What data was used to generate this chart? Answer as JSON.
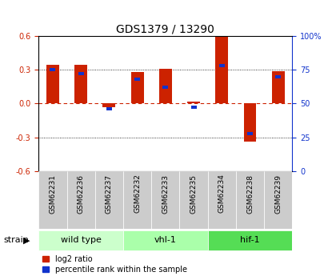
{
  "title": "GDS1379 / 13290",
  "samples": [
    "GSM62231",
    "GSM62236",
    "GSM62237",
    "GSM62232",
    "GSM62233",
    "GSM62235",
    "GSM62234",
    "GSM62238",
    "GSM62239"
  ],
  "log2_ratio": [
    0.34,
    0.34,
    -0.03,
    0.28,
    0.31,
    0.02,
    0.59,
    -0.34,
    0.29
  ],
  "percentile_rank_pct": [
    75,
    72,
    46,
    68,
    62,
    47,
    78,
    28,
    70
  ],
  "groups": [
    {
      "label": "wild type",
      "start": 0,
      "end": 3,
      "color": "#ccffcc"
    },
    {
      "label": "vhl-1",
      "start": 3,
      "end": 6,
      "color": "#aaffaa"
    },
    {
      "label": "hif-1",
      "start": 6,
      "end": 9,
      "color": "#55dd55"
    }
  ],
  "ylim": [
    -0.6,
    0.6
  ],
  "yticks_left": [
    -0.6,
    -0.3,
    0.0,
    0.3,
    0.6
  ],
  "yticks_right": [
    0,
    25,
    50,
    75,
    100
  ],
  "bar_color_red": "#cc2200",
  "bar_color_blue": "#1133cc",
  "bg_color": "#ffffff",
  "plot_bg": "#ffffff",
  "sample_box_color": "#cccccc",
  "legend_red": "log2 ratio",
  "legend_blue": "percentile rank within the sample"
}
